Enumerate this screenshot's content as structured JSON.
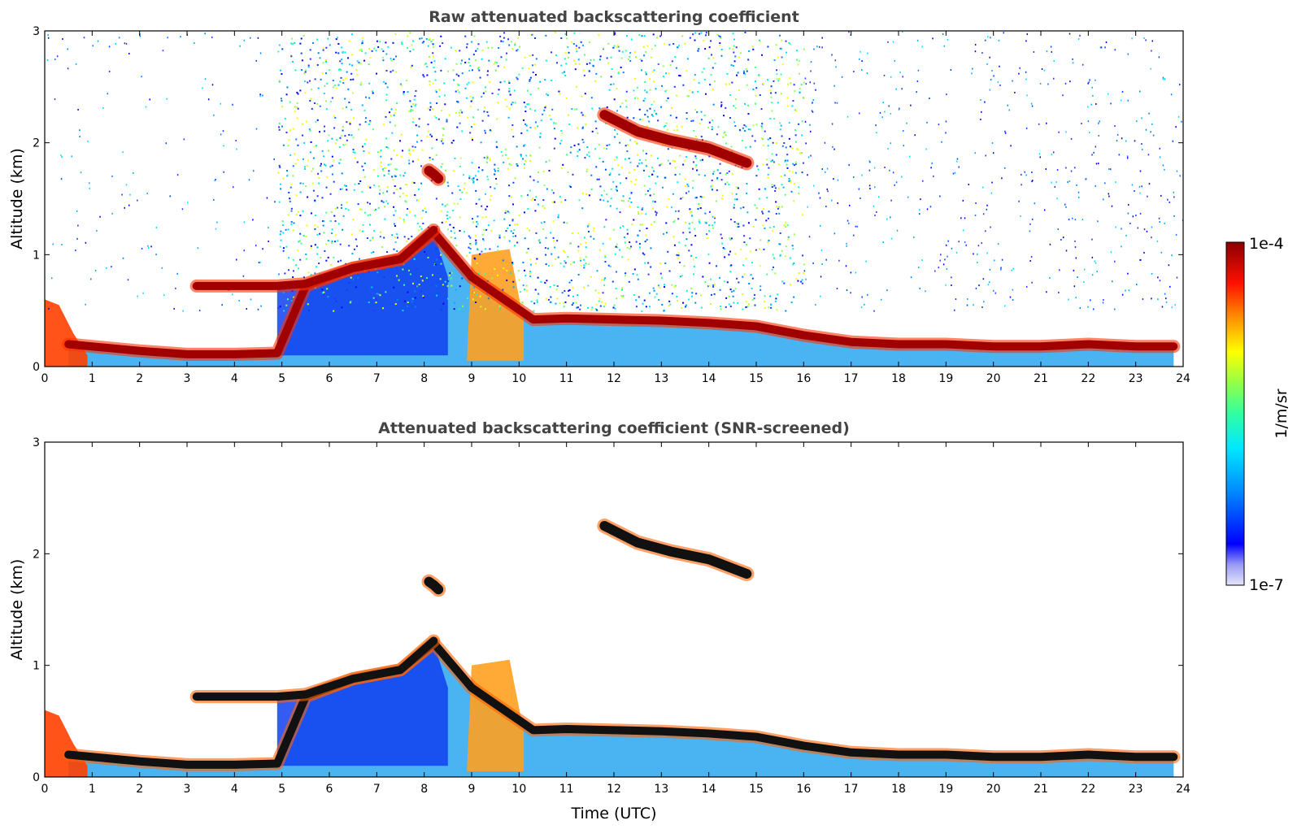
{
  "chart_data": [
    {
      "type": "heatmap",
      "title": "Raw attenuated backscattering coefficient",
      "xlabel": "",
      "ylabel": "Altitude (km)",
      "xlim": [
        0,
        24
      ],
      "ylim": [
        0,
        3
      ],
      "xticks": [
        "0",
        "1",
        "2",
        "3",
        "4",
        "5",
        "6",
        "7",
        "8",
        "9",
        "10",
        "11",
        "12",
        "13",
        "14",
        "15",
        "16",
        "17",
        "18",
        "19",
        "20",
        "21",
        "22",
        "23",
        "24"
      ],
      "yticks": [
        "0",
        "1",
        "2",
        "3"
      ],
      "layers": [
        {
          "name": "boundary-layer-top",
          "x": [
            0.5,
            1,
            2,
            3,
            4,
            4.9,
            5.5,
            6.5,
            7.5,
            8.2,
            9,
            10.3,
            11,
            12,
            13,
            14,
            15,
            16,
            17,
            18,
            19,
            20,
            21,
            22,
            23,
            23.8
          ],
          "y": [
            0.2,
            0.18,
            0.14,
            0.11,
            0.11,
            0.12,
            0.72,
            0.88,
            0.96,
            1.2,
            0.8,
            0.42,
            0.43,
            0.42,
            0.41,
            0.39,
            0.36,
            0.28,
            0.22,
            0.2,
            0.2,
            0.18,
            0.18,
            0.2,
            0.18,
            0.18
          ]
        },
        {
          "name": "elevated-layer",
          "x": [
            3.2,
            4,
            4.9,
            5.5,
            6.5,
            7.5,
            8.2
          ],
          "y": [
            0.72,
            0.72,
            0.72,
            0.74,
            0.88,
            0.96,
            1.22
          ]
        },
        {
          "name": "cloud",
          "x": [
            8.1,
            8.2,
            8.3
          ],
          "y": [
            1.75,
            1.72,
            1.68
          ]
        },
        {
          "name": "cloud",
          "x": [
            11.8,
            12.5,
            13.2,
            14,
            14.8
          ],
          "y": [
            2.25,
            2.1,
            2.02,
            1.95,
            1.82
          ]
        }
      ],
      "noise": {
        "x_start": 4.9,
        "x_end": 16,
        "y_start": 0.5,
        "y_end": 3
      }
    },
    {
      "type": "heatmap",
      "title": "Attenuated backscattering coefficient (SNR-screened)",
      "xlabel": "Time (UTC)",
      "ylabel": "Altitude (km)",
      "xlim": [
        0,
        24
      ],
      "ylim": [
        0,
        3
      ],
      "xticks": [
        "0",
        "1",
        "2",
        "3",
        "4",
        "5",
        "6",
        "7",
        "8",
        "9",
        "10",
        "11",
        "12",
        "13",
        "14",
        "15",
        "16",
        "17",
        "18",
        "19",
        "20",
        "21",
        "22",
        "23",
        "24"
      ],
      "yticks": [
        "0",
        "1",
        "2",
        "3"
      ],
      "layers": [
        {
          "name": "boundary-layer-top",
          "x": [
            0.5,
            1,
            2,
            3,
            4,
            4.9,
            5.5,
            6.5,
            7.5,
            8.2,
            9,
            10.3,
            11,
            12,
            13,
            14,
            15,
            16,
            17,
            18,
            19,
            20,
            21,
            22,
            23,
            23.8
          ],
          "y": [
            0.2,
            0.18,
            0.14,
            0.11,
            0.11,
            0.12,
            0.72,
            0.88,
            0.96,
            1.2,
            0.8,
            0.42,
            0.43,
            0.42,
            0.41,
            0.39,
            0.36,
            0.28,
            0.22,
            0.2,
            0.2,
            0.18,
            0.18,
            0.2,
            0.18,
            0.18
          ]
        },
        {
          "name": "elevated-layer",
          "x": [
            3.2,
            4,
            4.9,
            5.5,
            6.5,
            7.5,
            8.2
          ],
          "y": [
            0.72,
            0.72,
            0.72,
            0.74,
            0.88,
            0.96,
            1.22
          ]
        },
        {
          "name": "cloud",
          "x": [
            8.1,
            8.2,
            8.3
          ],
          "y": [
            1.75,
            1.72,
            1.68
          ]
        },
        {
          "name": "cloud",
          "x": [
            11.8,
            12.5,
            13.2,
            14,
            14.8
          ],
          "y": [
            2.25,
            2.1,
            2.02,
            1.95,
            1.82
          ]
        }
      ],
      "noise": null
    }
  ],
  "colorbar": {
    "label": "1/m/sr",
    "max_label": "1e-4",
    "min_label": "1e-7",
    "colors": [
      "#e6e6fa",
      "#b8b8f5",
      "#8080ff",
      "#3030ff",
      "#0000ff",
      "#0040ff",
      "#0080ff",
      "#00b0ff",
      "#00e0ff",
      "#00ffd0",
      "#40ff90",
      "#90ff50",
      "#d0ff20",
      "#ffff00",
      "#ffc000",
      "#ff8000",
      "#ff4000",
      "#ff0000",
      "#d00000",
      "#8b0000"
    ]
  }
}
